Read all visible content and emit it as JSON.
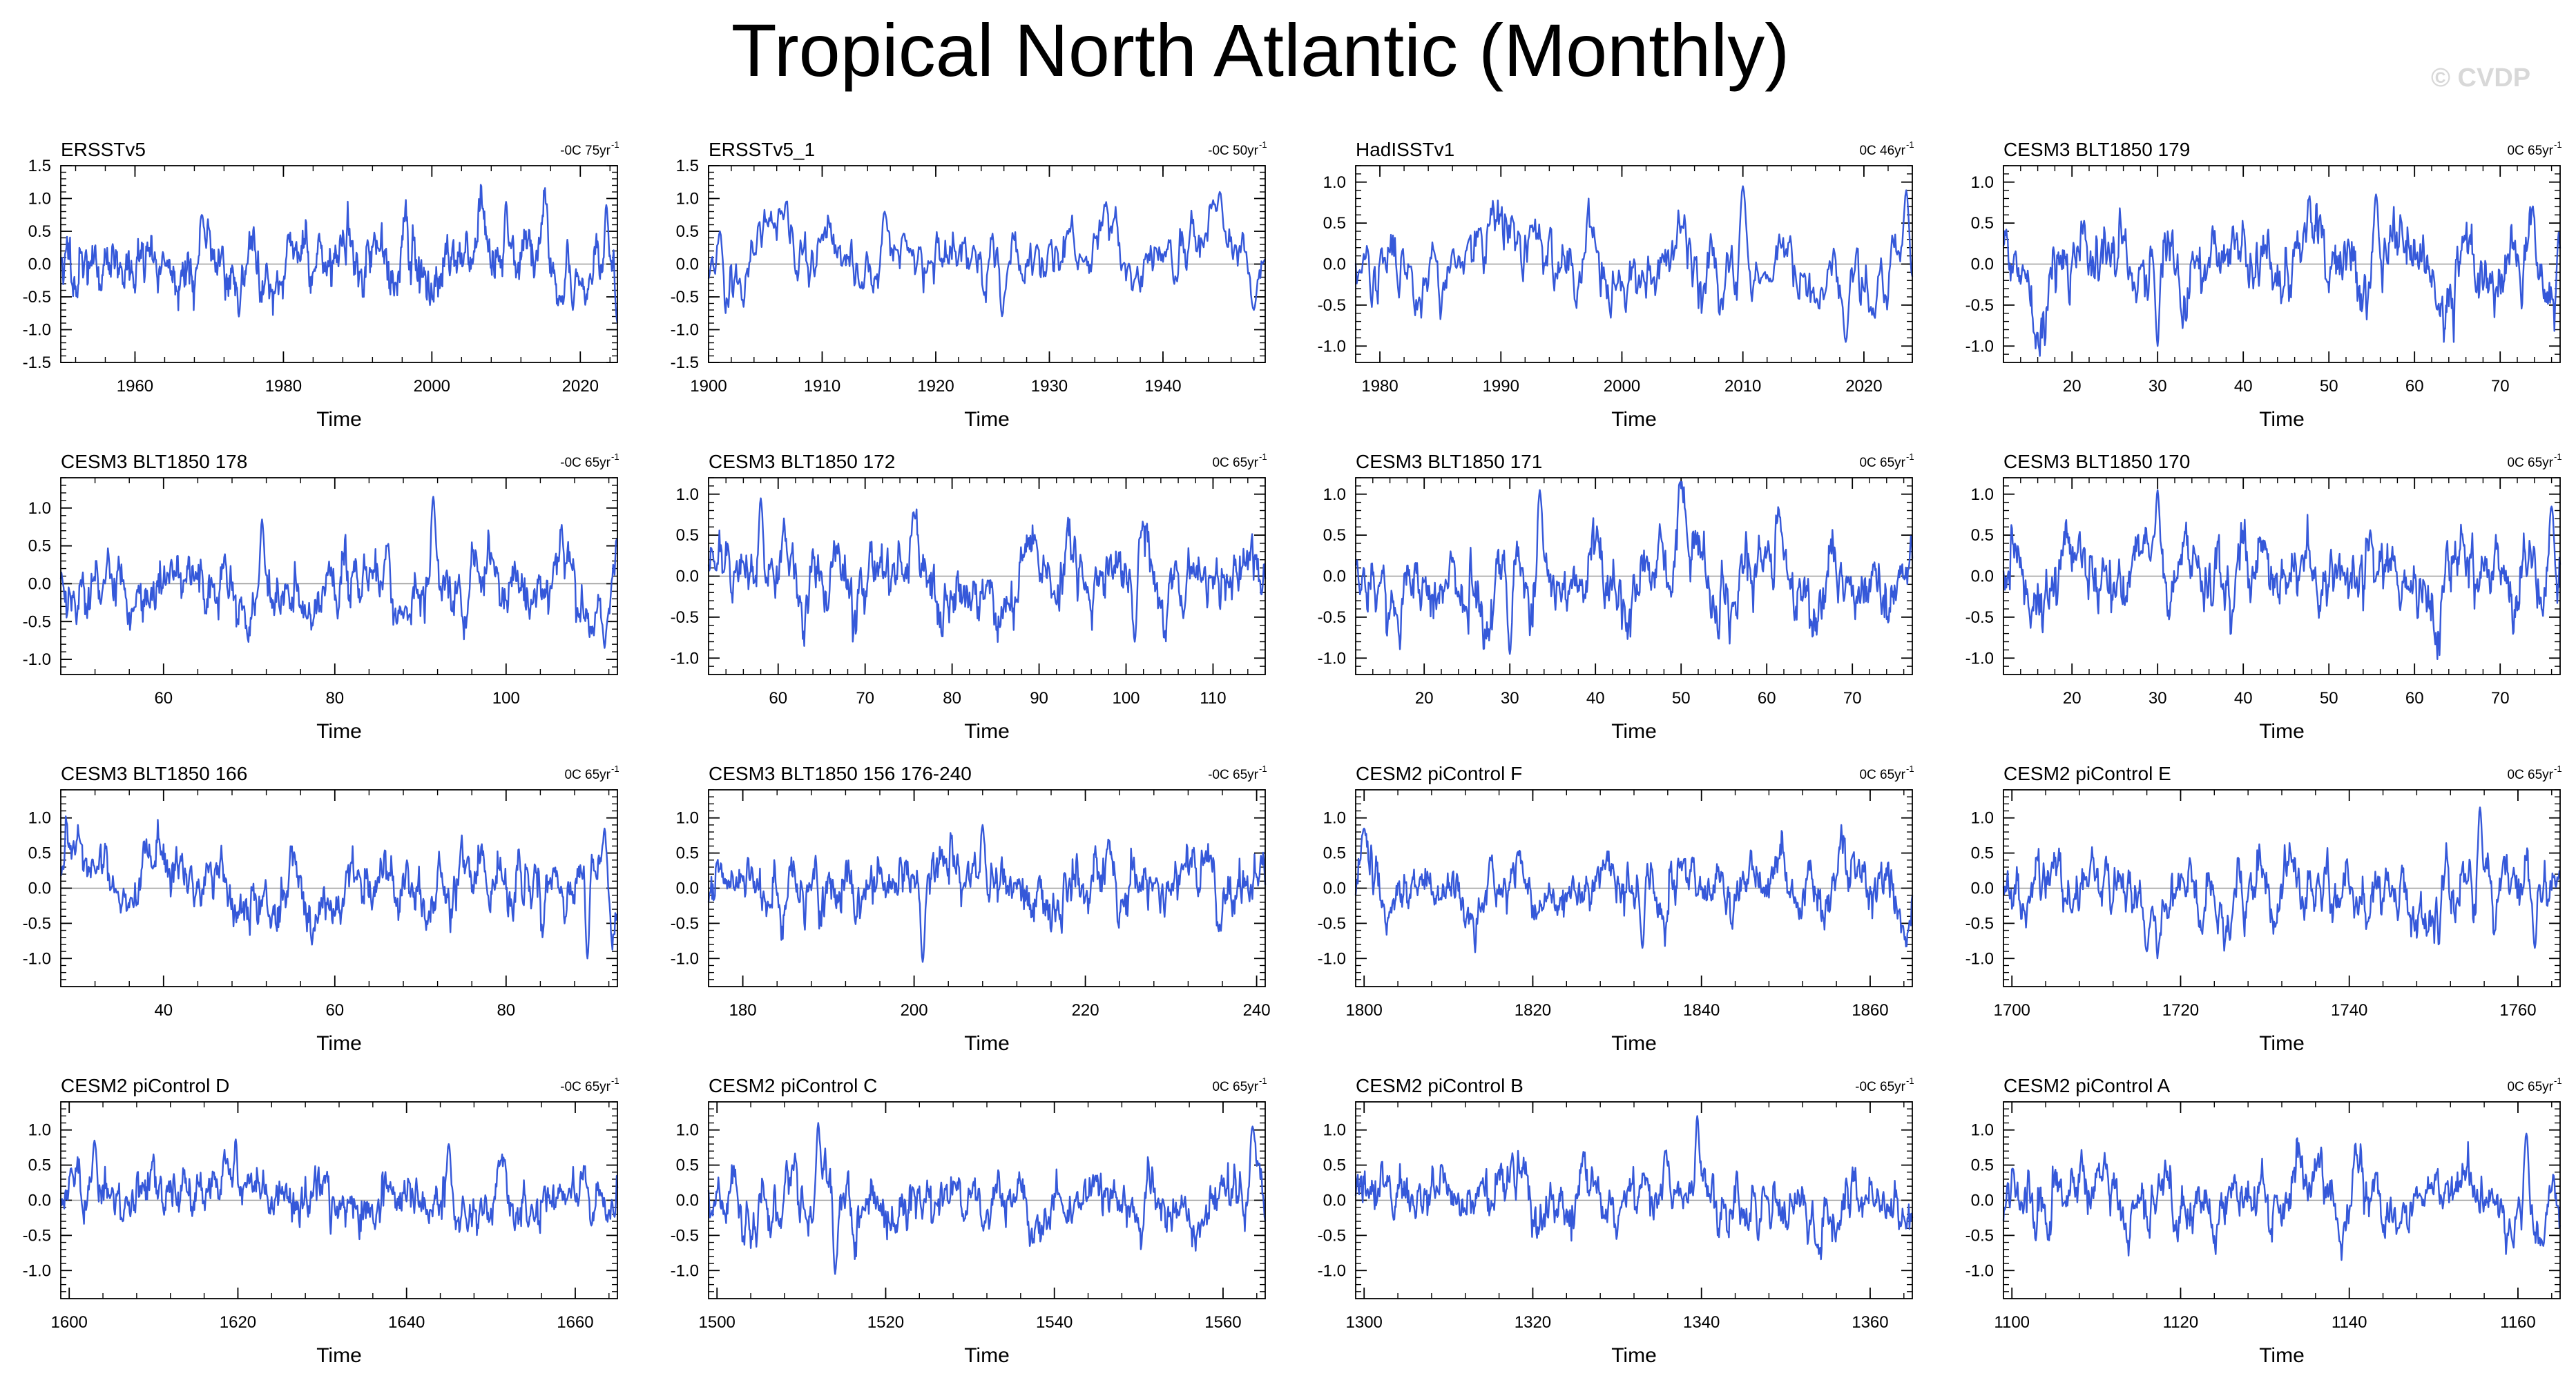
{
  "title": "Tropical North Atlantic (Monthly)",
  "watermark": "© CVDP",
  "colors": {
    "series": "#3558d9",
    "obs_secondary": "#8a8a8a",
    "axis": "#000000",
    "zero_line": "#9a9a9a"
  },
  "chart_data": [
    {
      "type": "line",
      "title": "ERSSTv5",
      "trend_label": "-0C 75yr",
      "xlabel": "Time",
      "xlim": [
        1950,
        2025
      ],
      "ylim": [
        -1.5,
        1.5
      ],
      "xticks": [
        1960,
        1980,
        2000,
        2020
      ],
      "xtick_labels": [
        "1960",
        "1980",
        "2000",
        "2020"
      ],
      "yticks": [
        -1.5,
        -1.0,
        -0.5,
        0.0,
        0.5,
        1.0,
        1.5
      ],
      "ytick_labels": [
        "-1.5",
        "-1.0",
        "-0.5",
        "0.0",
        "0.5",
        "1.0",
        "1.5"
      ],
      "series": [
        {
          "name": "tna",
          "seed": 11,
          "amp": 0.32,
          "peaks": [
            [
              1969,
              0.75
            ],
            [
              1974,
              -0.8
            ],
            [
              2010,
              0.95
            ],
            [
              2023.5,
              0.9
            ],
            [
              2019,
              -0.7
            ]
          ]
        }
      ]
    },
    {
      "type": "line",
      "title": "ERSSTv5_1",
      "trend_label": "-0C 50yr",
      "xlabel": "Time",
      "xlim": [
        1900,
        1949
      ],
      "ylim": [
        -1.5,
        1.5
      ],
      "xticks": [
        1900,
        1910,
        1920,
        1930,
        1940
      ],
      "xtick_labels": [
        "1900",
        "1910",
        "1920",
        "1930",
        "1940"
      ],
      "yticks": [
        -1.5,
        -1.0,
        -0.5,
        0.0,
        0.5,
        1.0,
        1.5
      ],
      "ytick_labels": [
        "-1.5",
        "-1.0",
        "-0.5",
        "0.0",
        "0.5",
        "1.0",
        "1.5"
      ],
      "series": [
        {
          "name": "tna",
          "seed": 23,
          "amp": 0.3,
          "peaks": [
            [
              1901,
              0.5
            ],
            [
              1915.5,
              0.8
            ],
            [
              1945,
              1.1
            ],
            [
              1948,
              -0.7
            ]
          ]
        }
      ]
    },
    {
      "type": "line",
      "title": "HadISSTv1",
      "trend_label": "0C 46yr",
      "xlabel": "Time",
      "xlim": [
        1978,
        2024
      ],
      "ylim": [
        -1.2,
        1.2
      ],
      "xticks": [
        1980,
        1990,
        2000,
        2010,
        2020
      ],
      "xtick_labels": [
        "1980",
        "1990",
        "2000",
        "2010",
        "2020"
      ],
      "yticks": [
        -1.0,
        -0.5,
        0.0,
        0.5,
        1.0
      ],
      "ytick_labels": [
        "-1.0",
        "-0.5",
        "0.0",
        "0.5",
        "1.0"
      ],
      "series": [
        {
          "name": "tna",
          "seed": 37,
          "amp": 0.3,
          "peaks": [
            [
              2010,
              0.95
            ],
            [
              2018.5,
              -0.95
            ],
            [
              2023.5,
              0.9
            ]
          ]
        }
      ]
    },
    {
      "type": "line",
      "title": "CESM3 BLT1850 179",
      "trend_label": "0C 65yr",
      "xlabel": "Time",
      "xlim": [
        12,
        77
      ],
      "ylim": [
        -1.2,
        1.2
      ],
      "xticks": [
        20,
        30,
        40,
        50,
        60,
        70
      ],
      "xtick_labels": [
        "20",
        "30",
        "40",
        "50",
        "60",
        "70"
      ],
      "yticks": [
        -1.0,
        -0.5,
        0.0,
        0.5,
        1.0
      ],
      "ytick_labels": [
        "-1.0",
        "-0.5",
        "0.0",
        "0.5",
        "1.0"
      ],
      "series": [
        {
          "name": "tna",
          "seed": 41,
          "amp": 0.3,
          "peaks": [
            [
              30,
              -1.0
            ],
            [
              55.5,
              0.85
            ]
          ]
        }
      ]
    },
    {
      "type": "line",
      "title": "CESM3 BLT1850 178",
      "trend_label": "-0C 65yr",
      "xlabel": "Time",
      "xlim": [
        48,
        113
      ],
      "ylim": [
        -1.2,
        1.4
      ],
      "xticks": [
        60,
        80,
        100
      ],
      "xtick_labels": [
        "60",
        "80",
        "100"
      ],
      "yticks": [
        -1.0,
        -0.5,
        0.0,
        0.5,
        1.0
      ],
      "ytick_labels": [
        "-1.0",
        "-0.5",
        "0.0",
        "0.5",
        "1.0"
      ],
      "series": [
        {
          "name": "tna",
          "seed": 53,
          "amp": 0.3,
          "peaks": [
            [
              71.5,
              0.85
            ],
            [
              91.5,
              1.15
            ],
            [
              111.5,
              -0.85
            ]
          ]
        }
      ]
    },
    {
      "type": "line",
      "title": "CESM3 BLT1850 172",
      "trend_label": "0C 65yr",
      "xlabel": "Time",
      "xlim": [
        52,
        116
      ],
      "ylim": [
        -1.2,
        1.2
      ],
      "xticks": [
        60,
        70,
        80,
        90,
        100,
        110
      ],
      "xtick_labels": [
        "60",
        "70",
        "80",
        "90",
        "100",
        "110"
      ],
      "yticks": [
        -1.0,
        -0.5,
        0.0,
        0.5,
        1.0
      ],
      "ytick_labels": [
        "-1.0",
        "-0.5",
        "0.0",
        "0.5",
        "1.0"
      ],
      "series": [
        {
          "name": "tna",
          "seed": 61,
          "amp": 0.28,
          "peaks": [
            [
              58,
              0.95
            ],
            [
              101,
              -0.8
            ]
          ]
        }
      ]
    },
    {
      "type": "line",
      "title": "CESM3 BLT1850 171",
      "trend_label": "0C 65yr",
      "xlabel": "Time",
      "xlim": [
        12,
        77
      ],
      "ylim": [
        -1.2,
        1.2
      ],
      "xticks": [
        20,
        30,
        40,
        50,
        60,
        70
      ],
      "xtick_labels": [
        "20",
        "30",
        "40",
        "50",
        "60",
        "70"
      ],
      "yticks": [
        -1.0,
        -0.5,
        0.0,
        0.5,
        1.0
      ],
      "ytick_labels": [
        "-1.0",
        "-0.5",
        "0.0",
        "0.5",
        "1.0"
      ],
      "series": [
        {
          "name": "tna",
          "seed": 73,
          "amp": 0.3,
          "peaks": [
            [
              33.5,
              1.05
            ],
            [
              30,
              -0.95
            ]
          ]
        }
      ]
    },
    {
      "type": "line",
      "title": "CESM3 BLT1850 170",
      "trend_label": "0C 65yr",
      "xlabel": "Time",
      "xlim": [
        12,
        77
      ],
      "ylim": [
        -1.2,
        1.2
      ],
      "xticks": [
        20,
        30,
        40,
        50,
        60,
        70
      ],
      "xtick_labels": [
        "20",
        "30",
        "40",
        "50",
        "60",
        "70"
      ],
      "yticks": [
        -1.0,
        -0.5,
        0.0,
        0.5,
        1.0
      ],
      "ytick_labels": [
        "-1.0",
        "-0.5",
        "0.0",
        "0.5",
        "1.0"
      ],
      "series": [
        {
          "name": "tna",
          "seed": 83,
          "amp": 0.3,
          "peaks": [
            [
              30,
              1.05
            ],
            [
              76,
              0.85
            ]
          ]
        }
      ]
    },
    {
      "type": "line",
      "title": "CESM3 BLT1850 166",
      "trend_label": "0C 65yr",
      "xlabel": "Time",
      "xlim": [
        28,
        93
      ],
      "ylim": [
        -1.4,
        1.4
      ],
      "xticks": [
        40,
        60,
        80
      ],
      "xtick_labels": [
        "40",
        "60",
        "80"
      ],
      "yticks": [
        -1.0,
        -0.5,
        0.0,
        0.5,
        1.0
      ],
      "ytick_labels": [
        "-1.0",
        "-0.5",
        "0.0",
        "0.5",
        "1.0"
      ],
      "series": [
        {
          "name": "tna",
          "seed": 97,
          "amp": 0.3,
          "peaks": [
            [
              91.5,
              0.85
            ],
            [
              89.5,
              -1.0
            ]
          ]
        }
      ]
    },
    {
      "type": "line",
      "title": "CESM3 BLT1850 156 176-240",
      "trend_label": "-0C 65yr",
      "xlabel": "Time",
      "xlim": [
        176,
        241
      ],
      "ylim": [
        -1.4,
        1.4
      ],
      "xticks": [
        180,
        200,
        220,
        240
      ],
      "xtick_labels": [
        "180",
        "200",
        "220",
        "240"
      ],
      "yticks": [
        -1.0,
        -0.5,
        0.0,
        0.5,
        1.0
      ],
      "ytick_labels": [
        "-1.0",
        "-0.5",
        "0.0",
        "0.5",
        "1.0"
      ],
      "series": [
        {
          "name": "tna",
          "seed": 101,
          "amp": 0.3,
          "peaks": [
            [
              201,
              -1.05
            ],
            [
              208,
              0.9
            ]
          ]
        }
      ]
    },
    {
      "type": "line",
      "title": "CESM2 piControl F",
      "trend_label": "0C 65yr",
      "xlabel": "Time",
      "xlim": [
        1799,
        1865
      ],
      "ylim": [
        -1.4,
        1.4
      ],
      "xticks": [
        1800,
        1820,
        1840,
        1860
      ],
      "xtick_labels": [
        "1800",
        "1820",
        "1840",
        "1860"
      ],
      "yticks": [
        -1.0,
        -0.5,
        0.0,
        0.5,
        1.0
      ],
      "ytick_labels": [
        "-1.0",
        "-0.5",
        "0.0",
        "0.5",
        "1.0"
      ],
      "series": [
        {
          "name": "tna",
          "seed": 113,
          "amp": 0.26,
          "peaks": [
            [
              1800,
              0.85
            ],
            [
              1833,
              -0.85
            ]
          ]
        }
      ]
    },
    {
      "type": "line",
      "title": "CESM2 piControl E",
      "trend_label": "0C 65yr",
      "xlabel": "Time",
      "xlim": [
        1699,
        1765
      ],
      "ylim": [
        -1.4,
        1.4
      ],
      "xticks": [
        1700,
        1720,
        1740,
        1760
      ],
      "xtick_labels": [
        "1700",
        "1720",
        "1740",
        "1760"
      ],
      "yticks": [
        -1.0,
        -0.5,
        0.0,
        0.5,
        1.0
      ],
      "ytick_labels": [
        "-1.0",
        "-0.5",
        "0.0",
        "0.5",
        "1.0"
      ],
      "series": [
        {
          "name": "tna",
          "seed": 127,
          "amp": 0.28,
          "peaks": [
            [
              1755.5,
              1.15
            ],
            [
              1716,
              -0.9
            ],
            [
              1762,
              -0.85
            ]
          ]
        }
      ]
    },
    {
      "type": "line",
      "title": "CESM2 piControl D",
      "trend_label": "-0C 65yr",
      "xlabel": "Time",
      "xlim": [
        1599,
        1665
      ],
      "ylim": [
        -1.4,
        1.4
      ],
      "xticks": [
        1600,
        1620,
        1640,
        1660
      ],
      "xtick_labels": [
        "1600",
        "1620",
        "1640",
        "1660"
      ],
      "yticks": [
        -1.0,
        -0.5,
        0.0,
        0.5,
        1.0
      ],
      "ytick_labels": [
        "-1.0",
        "-0.5",
        "0.0",
        "0.5",
        "1.0"
      ],
      "series": [
        {
          "name": "tna",
          "seed": 131,
          "amp": 0.27,
          "peaks": [
            [
              1603,
              0.85
            ],
            [
              1645,
              0.8
            ]
          ]
        }
      ]
    },
    {
      "type": "line",
      "title": "CESM2 piControl C",
      "trend_label": "0C 65yr",
      "xlabel": "Time",
      "xlim": [
        1499,
        1565
      ],
      "ylim": [
        -1.4,
        1.4
      ],
      "xticks": [
        1500,
        1520,
        1540,
        1560
      ],
      "xtick_labels": [
        "1500",
        "1520",
        "1540",
        "1560"
      ],
      "yticks": [
        -1.0,
        -0.5,
        0.0,
        0.5,
        1.0
      ],
      "ytick_labels": [
        "-1.0",
        "-0.5",
        "0.0",
        "0.5",
        "1.0"
      ],
      "series": [
        {
          "name": "tna",
          "seed": 139,
          "amp": 0.28,
          "peaks": [
            [
              1512,
              1.1
            ],
            [
              1514,
              -1.05
            ],
            [
              1563.5,
              1.05
            ]
          ]
        }
      ]
    },
    {
      "type": "line",
      "title": "CESM2 piControl B",
      "trend_label": "-0C 65yr",
      "xlabel": "Time",
      "xlim": [
        1299,
        1365
      ],
      "ylim": [
        -1.4,
        1.4
      ],
      "xticks": [
        1300,
        1320,
        1340,
        1360
      ],
      "xtick_labels": [
        "1300",
        "1320",
        "1340",
        "1360"
      ],
      "yticks": [
        -1.0,
        -0.5,
        0.0,
        0.5,
        1.0
      ],
      "ytick_labels": [
        "-1.0",
        "-0.5",
        "0.0",
        "0.5",
        "1.0"
      ],
      "series": [
        {
          "name": "tna",
          "seed": 149,
          "amp": 0.27,
          "peaks": [
            [
              1339.5,
              1.2
            ]
          ]
        }
      ]
    },
    {
      "type": "line",
      "title": "CESM2 piControl A",
      "trend_label": "0C 65yr",
      "xlabel": "Time",
      "xlim": [
        1099,
        1165
      ],
      "ylim": [
        -1.4,
        1.4
      ],
      "xticks": [
        1100,
        1120,
        1140,
        1160
      ],
      "xtick_labels": [
        "1100",
        "1120",
        "1140",
        "1160"
      ],
      "yticks": [
        -1.0,
        -0.5,
        0.0,
        0.5,
        1.0
      ],
      "ytick_labels": [
        "-1.0",
        "-0.5",
        "0.0",
        "0.5",
        "1.0"
      ],
      "series": [
        {
          "name": "tna",
          "seed": 157,
          "amp": 0.28,
          "peaks": [
            [
              1161,
              0.95
            ],
            [
              1163,
              -0.65
            ]
          ]
        }
      ]
    }
  ]
}
